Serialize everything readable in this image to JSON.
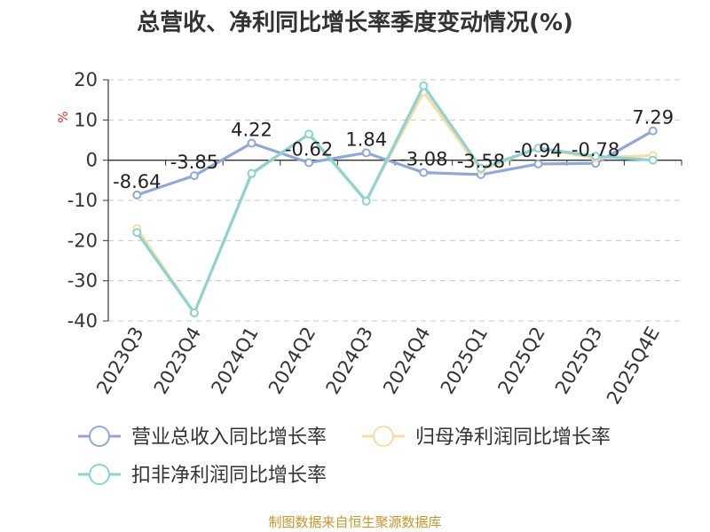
{
  "chart_data": {
    "type": "line",
    "title": "总营收、净利同比增长率季度变动情况(%)",
    "ylabel": "%",
    "categories": [
      "2023Q3",
      "2023Q4",
      "2024Q1",
      "2024Q2",
      "2024Q3",
      "2024Q4",
      "2025Q1",
      "2025Q2",
      "2025Q3",
      "2025Q4E"
    ],
    "ylim": [
      -40,
      20
    ],
    "yticks": [
      20,
      10,
      0,
      -10,
      -20,
      -30,
      -40
    ],
    "grid": true,
    "legend_position": "bottom",
    "series": [
      {
        "name": "营业总收入同比增长率",
        "color": "#8fa8d8",
        "values": [
          -8.64,
          -3.85,
          4.22,
          -0.62,
          1.84,
          -3.08,
          -3.58,
          -0.94,
          -0.78,
          7.29
        ],
        "labels": [
          "-8.64",
          "-3.85",
          "4.22",
          "-0.62",
          "1.84",
          "-3.08",
          "-3.58",
          "-0.94",
          "-0.78",
          "7.29"
        ]
      },
      {
        "name": "归母净利润同比增长率",
        "color": "#f9dca3",
        "values": [
          -17.0,
          -38.0,
          -3.5,
          6.5,
          -10.0,
          17.0,
          -2.5,
          3.0,
          0.5,
          1.2
        ]
      },
      {
        "name": "扣非净利润同比增长率",
        "color": "#8dd3d3",
        "values": [
          -18.0,
          -38.0,
          -3.3,
          6.5,
          -10.2,
          18.5,
          -2.0,
          3.0,
          1.0,
          0.0
        ]
      }
    ]
  },
  "source": "制图数据来自恒生聚源数据库"
}
